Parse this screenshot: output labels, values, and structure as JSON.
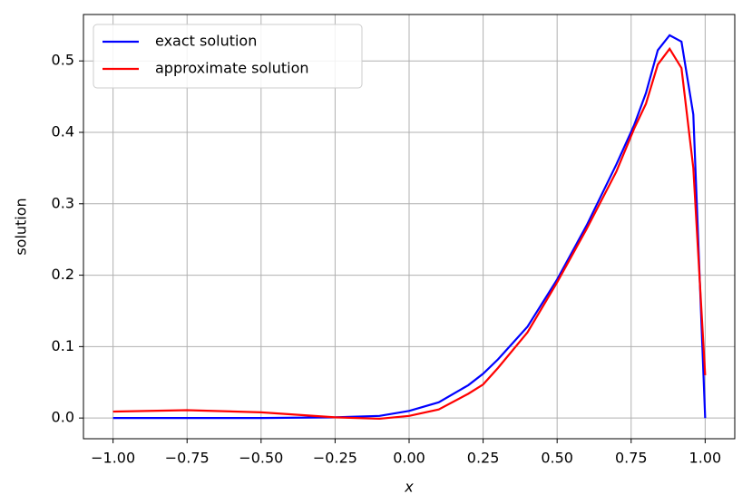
{
  "chart_data": {
    "type": "line",
    "x_label": "x",
    "y_label": "solution",
    "x": [
      -1.0,
      -0.75,
      -0.5,
      -0.25,
      -0.1,
      0.0,
      0.1,
      0.2,
      0.25,
      0.3,
      0.4,
      0.5,
      0.6,
      0.7,
      0.76,
      0.8,
      0.84,
      0.88,
      0.92,
      0.96,
      1.0
    ],
    "series": [
      {
        "name": "exact solution",
        "color": "#0000ff",
        "values": [
          0.0,
          0.0,
          0.0,
          0.001,
          0.003,
          0.01,
          0.022,
          0.046,
          0.062,
          0.082,
          0.128,
          0.194,
          0.27,
          0.355,
          0.41,
          0.455,
          0.515,
          0.536,
          0.527,
          0.425,
          0.0
        ]
      },
      {
        "name": "approximate solution",
        "color": "#ff0000",
        "values": [
          0.009,
          0.011,
          0.008,
          0.001,
          -0.001,
          0.003,
          0.012,
          0.034,
          0.047,
          0.07,
          0.12,
          0.19,
          0.265,
          0.345,
          0.405,
          0.44,
          0.495,
          0.517,
          0.49,
          0.35,
          0.06
        ]
      }
    ],
    "xlim": [
      -1.1,
      1.1
    ],
    "ylim": [
      -0.029,
      0.565
    ],
    "xticks": [
      {
        "value": -1.0,
        "label": "−1.00"
      },
      {
        "value": -0.75,
        "label": "−0.75"
      },
      {
        "value": -0.5,
        "label": "−0.50"
      },
      {
        "value": -0.25,
        "label": "−0.25"
      },
      {
        "value": 0.0,
        "label": "0.00"
      },
      {
        "value": 0.25,
        "label": "0.25"
      },
      {
        "value": 0.5,
        "label": "0.50"
      },
      {
        "value": 0.75,
        "label": "0.75"
      },
      {
        "value": 1.0,
        "label": "1.00"
      }
    ],
    "yticks": [
      {
        "value": 0.0,
        "label": "0.0"
      },
      {
        "value": 0.1,
        "label": "0.1"
      },
      {
        "value": 0.2,
        "label": "0.2"
      },
      {
        "value": 0.3,
        "label": "0.3"
      },
      {
        "value": 0.4,
        "label": "0.4"
      },
      {
        "value": 0.5,
        "label": "0.5"
      }
    ],
    "grid": true,
    "legend": "upper-left"
  }
}
